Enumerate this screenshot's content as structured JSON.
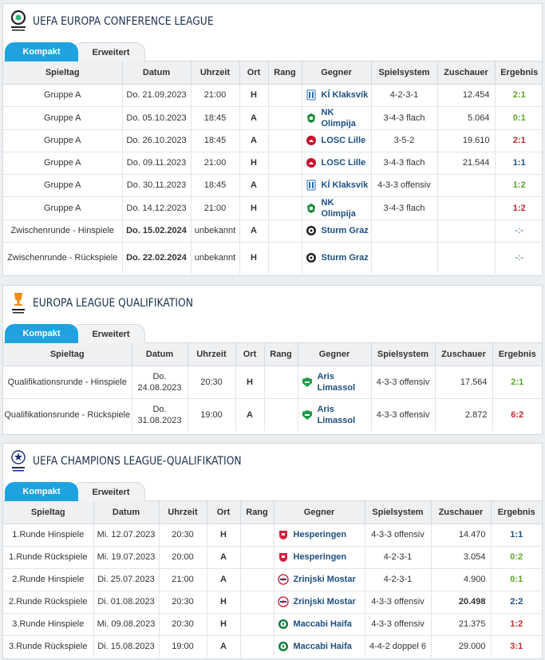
{
  "tabs": {
    "compact": "Kompakt",
    "extended": "Erweitert"
  },
  "columns": [
    "Spieltag",
    "Datum",
    "Uhrzeit",
    "Ort",
    "Rang",
    "Gegner",
    "Spielsystem",
    "Zuschauer",
    "Ergebnis"
  ],
  "competitions": [
    {
      "title": "UEFA EUROPA CONFERENCE LEAGUE",
      "logo_icon": "conference-league-logo",
      "rows": [
        {
          "matchday": "Gruppe A",
          "date": "Do. 21.09.2023",
          "time": "21:00",
          "venue": "H",
          "rank": "",
          "opponent": "KÍ Klaksvík",
          "opp_icon": "ki-klaksvik-crest",
          "system": "4-2-3-1",
          "attendance": "12.454",
          "result": "2:1",
          "outcome": "win"
        },
        {
          "matchday": "Gruppe A",
          "date": "Do. 05.10.2023",
          "time": "18:45",
          "venue": "A",
          "rank": "",
          "opponent": "NK Olimpija",
          "opp_icon": "nk-olimpija-crest",
          "system": "3-4-3 flach",
          "attendance": "5.064",
          "result": "0:1",
          "outcome": "win"
        },
        {
          "matchday": "Gruppe A",
          "date": "Do. 26.10.2023",
          "time": "18:45",
          "venue": "A",
          "rank": "",
          "opponent": "LOSC Lille",
          "opp_icon": "losc-lille-crest",
          "system": "3-5-2",
          "attendance": "19.610",
          "result": "2:1",
          "outcome": "loss"
        },
        {
          "matchday": "Gruppe A",
          "date": "Do. 09.11.2023",
          "time": "21:00",
          "venue": "H",
          "rank": "",
          "opponent": "LOSC Lille",
          "opp_icon": "losc-lille-crest",
          "system": "3-4-3 flach",
          "attendance": "21.544",
          "result": "1:1",
          "outcome": "draw"
        },
        {
          "matchday": "Gruppe A",
          "date": "Do. 30.11.2023",
          "time": "18:45",
          "venue": "A",
          "rank": "",
          "opponent": "KÍ Klaksvík",
          "opp_icon": "ki-klaksvik-crest",
          "system": "4-3-3 offensiv",
          "attendance": "",
          "result": "1:2",
          "outcome": "win"
        },
        {
          "matchday": "Gruppe A",
          "date": "Do. 14.12.2023",
          "time": "21:00",
          "venue": "H",
          "rank": "",
          "opponent": "NK Olimpija",
          "opp_icon": "nk-olimpija-crest",
          "system": "3-4-3 flach",
          "attendance": "",
          "result": "1:2",
          "outcome": "loss"
        },
        {
          "matchday": "Zwischenrunde - Hinspiele",
          "date": "Do. 15.02.2024",
          "date_bold": true,
          "time": "unbekannt",
          "venue": "A",
          "rank": "",
          "opponent": "Sturm Graz",
          "opp_icon": "sturm-graz-crest",
          "system": "",
          "attendance": "",
          "result": "-:-",
          "outcome": "none"
        },
        {
          "matchday": "Zwischenrunde - Rückspiele",
          "date": "Do. 22.02.2024",
          "date_bold": true,
          "time": "unbekannt",
          "venue": "H",
          "rank": "",
          "opponent": "Sturm Graz",
          "opp_icon": "sturm-graz-crest",
          "system": "",
          "attendance": "",
          "result": "-:-",
          "outcome": "none"
        }
      ]
    },
    {
      "title": "EUROPA LEAGUE QUALIFIKATION",
      "logo_icon": "europa-league-logo",
      "rows": [
        {
          "matchday": "Qualifikationsrunde - Hinspiele",
          "date": "Do. 24.08.2023",
          "time": "20:30",
          "venue": "H",
          "rank": "",
          "opponent": "Aris Limassol",
          "opp_icon": "aris-limassol-crest",
          "system": "4-3-3 offensiv",
          "attendance": "17.564",
          "result": "2:1",
          "outcome": "win"
        },
        {
          "matchday": "Qualifikationsrunde - Rückspiele",
          "date": "Do. 31.08.2023",
          "time": "19:00",
          "venue": "A",
          "rank": "",
          "opponent": "Aris Limassol",
          "opp_icon": "aris-limassol-crest",
          "system": "4-3-3 offensiv",
          "attendance": "2.872",
          "result": "6:2",
          "outcome": "loss"
        }
      ]
    },
    {
      "title": "UEFA CHAMPIONS LEAGUE-QUALIFIKATION",
      "logo_icon": "champions-league-logo",
      "rows": [
        {
          "matchday": "1.Runde Hinspiele",
          "date": "Mi. 12.07.2023",
          "time": "20:30",
          "venue": "H",
          "rank": "",
          "opponent": "Hesperingen",
          "opp_icon": "hesperingen-crest",
          "system": "4-3-3 offensiv",
          "attendance": "14.470",
          "result": "1:1",
          "outcome": "draw"
        },
        {
          "matchday": "1.Runde Rückspiele",
          "date": "Mi. 19.07.2023",
          "time": "20:00",
          "venue": "A",
          "rank": "",
          "opponent": "Hesperingen",
          "opp_icon": "hesperingen-crest",
          "system": "4-2-3-1",
          "attendance": "3.054",
          "result": "0:2",
          "outcome": "win"
        },
        {
          "matchday": "2.Runde Hinspiele",
          "date": "Di. 25.07.2023",
          "time": "21:00",
          "venue": "A",
          "rank": "",
          "opponent": "Zrinjski Mostar",
          "opp_icon": "zrinjski-mostar-crest",
          "system": "4-2-3-1",
          "attendance": "4.900",
          "result": "0:1",
          "outcome": "win"
        },
        {
          "matchday": "2.Runde Rückspiele",
          "date": "Di. 01.08.2023",
          "time": "20:30",
          "venue": "H",
          "rank": "",
          "opponent": "Zrinjski Mostar",
          "opp_icon": "zrinjski-mostar-crest",
          "system": "4-3-3 offensiv",
          "attendance": "20.498",
          "attendance_bold": true,
          "result": "2:2",
          "outcome": "draw"
        },
        {
          "matchday": "3.Runde Hinspiele",
          "date": "Mi. 09.08.2023",
          "time": "20:30",
          "venue": "H",
          "rank": "",
          "opponent": "Maccabi Haifa",
          "opp_icon": "maccabi-haifa-crest",
          "system": "4-3-3 offensiv",
          "attendance": "21.375",
          "result": "1:2",
          "outcome": "loss"
        },
        {
          "matchday": "3.Runde Rückspiele",
          "date": "Di. 15.08.2023",
          "time": "19:00",
          "venue": "A",
          "rank": "",
          "opponent": "Maccabi Haifa",
          "opp_icon": "maccabi-haifa-crest",
          "system": "4-4-2 doppel 6",
          "attendance": "29.000",
          "result": "3:1",
          "outcome": "loss"
        }
      ]
    }
  ]
}
